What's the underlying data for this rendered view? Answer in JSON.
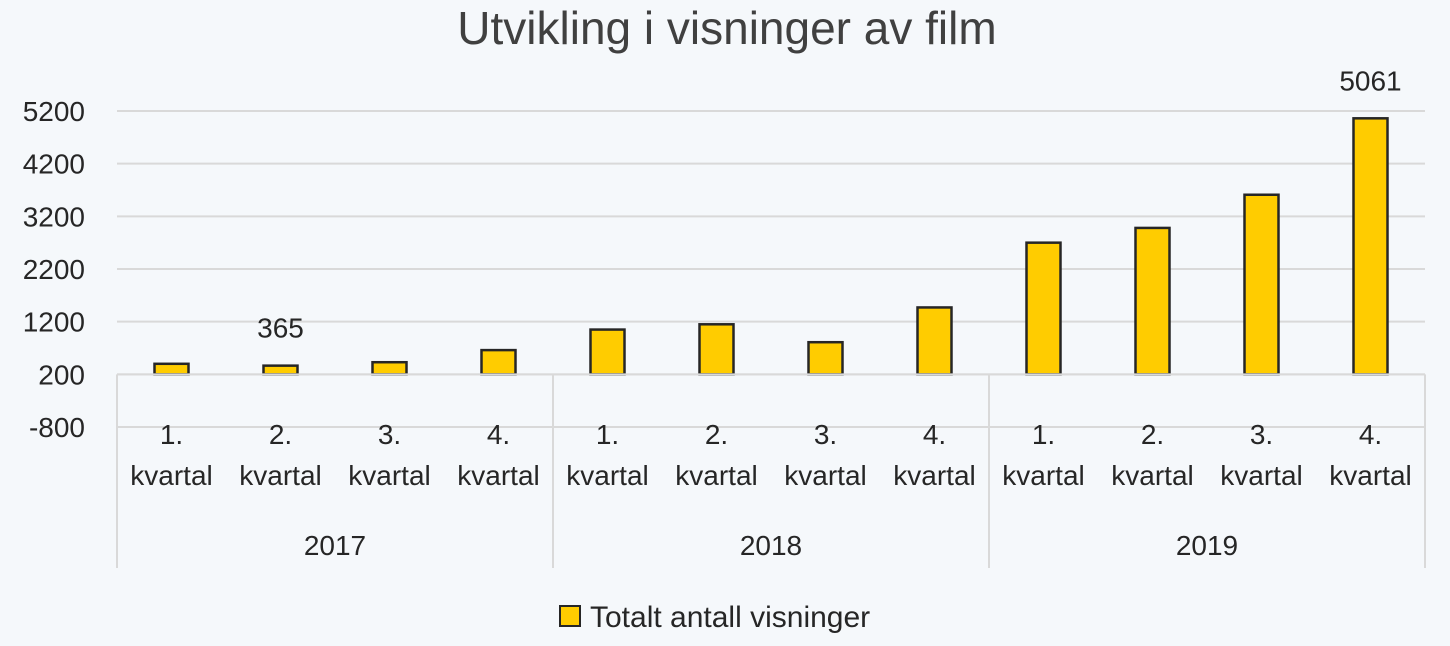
{
  "chart_data": {
    "type": "bar",
    "title": "Utvikling i visninger av film",
    "xlabel": "",
    "ylabel": "",
    "ylim": [
      -800,
      5200
    ],
    "yticks": [
      -800,
      200,
      1200,
      2200,
      3200,
      4200,
      5200
    ],
    "grid": true,
    "legend_position": "bottom",
    "bar_color": "#ffcc00",
    "bar_edge_color": "#262626",
    "groups": [
      {
        "label": "2017",
        "categories": [
          "1. kvartal",
          "2. kvartal",
          "3. kvartal",
          "4. kvartal"
        ]
      },
      {
        "label": "2018",
        "categories": [
          "1. kvartal",
          "2. kvartal",
          "3. kvartal",
          "4. kvartal"
        ]
      },
      {
        "label": "2019",
        "categories": [
          "1. kvartal",
          "2. kvartal",
          "3. kvartal",
          "4. kvartal"
        ]
      }
    ],
    "series": [
      {
        "name": "Totalt antall visninger",
        "values": [
          400,
          365,
          430,
          660,
          1050,
          1150,
          810,
          1470,
          2700,
          2980,
          3610,
          5061
        ]
      }
    ],
    "data_labels": [
      {
        "index": 1,
        "text": "365"
      },
      {
        "index": 11,
        "text": "5061"
      }
    ]
  }
}
